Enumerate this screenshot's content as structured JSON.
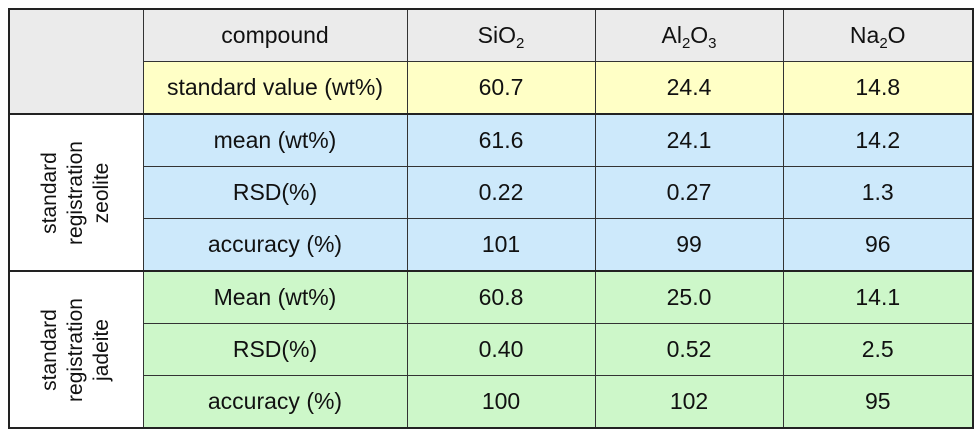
{
  "header": {
    "compound_label": "compound",
    "columns": [
      {
        "base1": "SiO",
        "sub1": "2",
        "base2": "",
        "sub2": ""
      },
      {
        "base1": "Al",
        "sub1": "2",
        "base2": "O",
        "sub2": "3"
      },
      {
        "base1": "Na",
        "sub1": "2",
        "base2": "O",
        "sub2": ""
      }
    ]
  },
  "standard_row": {
    "label": "standard value (wt%)",
    "values": [
      "60.7",
      "24.4",
      "14.8"
    ]
  },
  "groups": [
    {
      "line1": "standard",
      "line2": "registration",
      "line3": "zeolite",
      "color": "#cde9fb",
      "rows": [
        {
          "label": "mean (wt%)",
          "values": [
            "61.6",
            "24.1",
            "14.2"
          ]
        },
        {
          "label": "RSD(%)",
          "values": [
            "0.22",
            "0.27",
            "1.3"
          ]
        },
        {
          "label": "accuracy (%)",
          "values": [
            "101",
            "99",
            "96"
          ]
        }
      ]
    },
    {
      "line1": "standard",
      "line2": "registration",
      "line3": "jadeite",
      "color": "#cdf7c9",
      "rows": [
        {
          "label": "Mean (wt%)",
          "values": [
            "60.8",
            "25.0",
            "14.1"
          ]
        },
        {
          "label": "RSD(%)",
          "values": [
            "0.40",
            "0.52",
            "2.5"
          ]
        },
        {
          "label": "accuracy (%)",
          "values": [
            "100",
            "102",
            "95"
          ]
        }
      ]
    }
  ],
  "colors": {
    "header_gray": "#ebebeb",
    "standard_yellow": "#ffffc6",
    "zeolite_blue": "#cde9fb",
    "jadeite_green": "#cdf7c9"
  }
}
